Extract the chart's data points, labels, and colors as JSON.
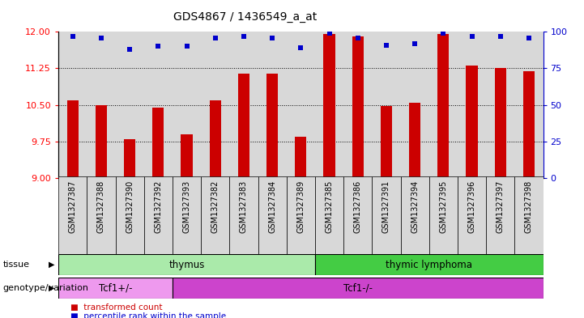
{
  "title": "GDS4867 / 1436549_a_at",
  "samples": [
    "GSM1327387",
    "GSM1327388",
    "GSM1327390",
    "GSM1327392",
    "GSM1327393",
    "GSM1327382",
    "GSM1327383",
    "GSM1327384",
    "GSM1327389",
    "GSM1327385",
    "GSM1327386",
    "GSM1327391",
    "GSM1327394",
    "GSM1327395",
    "GSM1327396",
    "GSM1327397",
    "GSM1327398"
  ],
  "transformed_count": [
    10.6,
    10.5,
    9.8,
    10.45,
    9.9,
    10.6,
    11.15,
    11.15,
    9.85,
    11.95,
    11.9,
    10.48,
    10.55,
    11.95,
    11.3,
    11.25,
    11.2
  ],
  "percentile_rank": [
    97,
    96,
    88,
    90,
    90,
    96,
    97,
    96,
    89,
    99,
    96,
    91,
    92,
    99,
    97,
    97,
    96
  ],
  "ylim_left": [
    9.0,
    12.0
  ],
  "ylim_right": [
    0,
    100
  ],
  "yticks_left": [
    9.0,
    9.75,
    10.5,
    11.25,
    12.0
  ],
  "yticks_right": [
    0,
    25,
    50,
    75,
    100
  ],
  "bar_color": "#cc0000",
  "dot_color": "#0000cc",
  "bg_color": "#d8d8d8",
  "tissue_groups": [
    {
      "label": "thymus",
      "start": 0,
      "end": 9,
      "color": "#aaeaaa"
    },
    {
      "label": "thymic lymphoma",
      "start": 9,
      "end": 17,
      "color": "#44cc44"
    }
  ],
  "genotype_groups": [
    {
      "label": "Tcf1+/-",
      "start": 0,
      "end": 4,
      "color": "#ee99ee"
    },
    {
      "label": "Tcf1-/-",
      "start": 4,
      "end": 17,
      "color": "#cc44cc"
    }
  ],
  "legend_items": [
    {
      "color": "#cc0000",
      "label": "transformed count"
    },
    {
      "color": "#0000cc",
      "label": "percentile rank within the sample"
    }
  ],
  "tissue_label": "tissue",
  "genotype_label": "genotype/variation",
  "grid_lines": [
    9.75,
    10.5,
    11.25
  ]
}
